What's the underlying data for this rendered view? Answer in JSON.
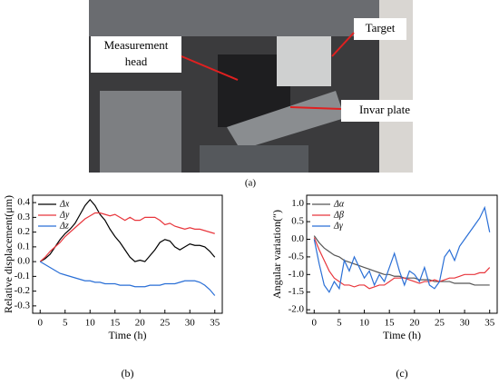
{
  "figure_a": {
    "labels": [
      [
        "Measurement",
        "head"
      ],
      [
        "Target"
      ],
      [
        "Invar plate"
      ]
    ],
    "caption": "(a)"
  },
  "chart_data": [
    {
      "type": "line",
      "caption": "(b)",
      "x_label": "Time (h)",
      "y_label": "Relative displacement(μm)",
      "x": [
        0,
        1,
        2,
        3,
        4,
        5,
        6,
        7,
        8,
        9,
        10,
        11,
        12,
        13,
        14,
        15,
        16,
        17,
        18,
        19,
        20,
        21,
        22,
        23,
        24,
        25,
        26,
        27,
        28,
        29,
        30,
        31,
        32,
        33,
        34,
        35
      ],
      "xlim": [
        -1.5,
        36.5
      ],
      "xticks": [
        0,
        5,
        10,
        15,
        20,
        25,
        30,
        35
      ],
      "ylim": [
        -0.35,
        0.45
      ],
      "yticks": [
        -0.3,
        -0.2,
        -0.1,
        {
          "value": 0,
          "label": "0.0"
        },
        0.1,
        0.2,
        0.3,
        0.4
      ],
      "series": [
        {
          "name": "Δx",
          "color": "#000000",
          "values": [
            0,
            0.02,
            0.05,
            0.1,
            0.15,
            0.19,
            0.22,
            0.26,
            0.32,
            0.38,
            0.42,
            0.38,
            0.32,
            0.28,
            0.22,
            0.17,
            0.13,
            0.08,
            0.03,
            0.0,
            0.01,
            0.0,
            0.04,
            0.08,
            0.13,
            0.15,
            0.14,
            0.1,
            0.08,
            0.1,
            0.12,
            0.11,
            0.11,
            0.1,
            0.07,
            0.03
          ]
        },
        {
          "name": "Δy",
          "color": "#e8363c",
          "values": [
            0,
            0.03,
            0.07,
            0.1,
            0.13,
            0.17,
            0.2,
            0.23,
            0.26,
            0.29,
            0.31,
            0.33,
            0.33,
            0.32,
            0.31,
            0.32,
            0.3,
            0.28,
            0.3,
            0.28,
            0.28,
            0.3,
            0.3,
            0.3,
            0.28,
            0.25,
            0.26,
            0.24,
            0.23,
            0.22,
            0.23,
            0.22,
            0.22,
            0.21,
            0.2,
            0.19
          ]
        },
        {
          "name": "Δz",
          "color": "#2a6fd6",
          "values": [
            0,
            -0.02,
            -0.04,
            -0.06,
            -0.08,
            -0.09,
            -0.1,
            -0.11,
            -0.12,
            -0.13,
            -0.13,
            -0.14,
            -0.14,
            -0.15,
            -0.15,
            -0.15,
            -0.16,
            -0.16,
            -0.16,
            -0.17,
            -0.17,
            -0.17,
            -0.16,
            -0.16,
            -0.16,
            -0.15,
            -0.15,
            -0.15,
            -0.14,
            -0.13,
            -0.13,
            -0.13,
            -0.14,
            -0.16,
            -0.19,
            -0.23
          ]
        }
      ]
    },
    {
      "type": "line",
      "caption": "(c)",
      "x_label": "Time (h)",
      "y_label": "Angular variation(″)",
      "x": [
        0,
        1,
        2,
        3,
        4,
        5,
        6,
        7,
        8,
        9,
        10,
        11,
        12,
        13,
        14,
        15,
        16,
        17,
        18,
        19,
        20,
        21,
        22,
        23,
        24,
        25,
        26,
        27,
        28,
        29,
        30,
        31,
        32,
        33,
        34,
        35
      ],
      "xlim": [
        -1.5,
        36.5
      ],
      "xticks": [
        0,
        5,
        10,
        15,
        20,
        25,
        30,
        35
      ],
      "ylim": [
        -2.1,
        1.25
      ],
      "yticks": [
        {
          "value": -2,
          "label": "-2.0"
        },
        -1.5,
        {
          "value": -1,
          "label": "-1.0"
        },
        -0.5,
        {
          "value": 0,
          "label": "0.0"
        },
        0.5,
        {
          "value": 1,
          "label": "1.0"
        }
      ],
      "series": [
        {
          "name": "Δα",
          "color": "#555555",
          "values": [
            0.1,
            -0.1,
            -0.25,
            -0.35,
            -0.45,
            -0.5,
            -0.6,
            -0.65,
            -0.7,
            -0.75,
            -0.8,
            -0.85,
            -0.9,
            -0.95,
            -1.0,
            -1.0,
            -1.05,
            -1.05,
            -1.1,
            -1.1,
            -1.1,
            -1.15,
            -1.15,
            -1.15,
            -1.2,
            -1.2,
            -1.2,
            -1.2,
            -1.25,
            -1.25,
            -1.25,
            -1.25,
            -1.3,
            -1.3,
            -1.3,
            -1.3
          ]
        },
        {
          "name": "Δβ",
          "color": "#e8363c",
          "values": [
            0.05,
            -0.3,
            -0.6,
            -0.9,
            -1.1,
            -1.2,
            -1.3,
            -1.3,
            -1.35,
            -1.3,
            -1.3,
            -1.4,
            -1.35,
            -1.3,
            -1.3,
            -1.2,
            -1.1,
            -1.1,
            -1.1,
            -1.15,
            -1.2,
            -1.25,
            -1.2,
            -1.2,
            -1.15,
            -1.2,
            -1.15,
            -1.1,
            -1.1,
            -1.05,
            -1.0,
            -1.0,
            -1.0,
            -0.95,
            -0.95,
            -0.8
          ]
        },
        {
          "name": "Δγ",
          "color": "#2a6fd6",
          "values": [
            0.0,
            -0.7,
            -1.3,
            -1.5,
            -1.2,
            -1.4,
            -0.6,
            -0.9,
            -0.5,
            -0.8,
            -1.1,
            -0.9,
            -1.3,
            -1.0,
            -1.2,
            -0.8,
            -0.4,
            -0.9,
            -1.3,
            -0.9,
            -1.0,
            -1.2,
            -0.8,
            -1.3,
            -1.4,
            -1.2,
            -0.5,
            -0.3,
            -0.6,
            -0.2,
            0.0,
            0.2,
            0.4,
            0.6,
            0.9,
            0.2
          ]
        }
      ]
    }
  ]
}
